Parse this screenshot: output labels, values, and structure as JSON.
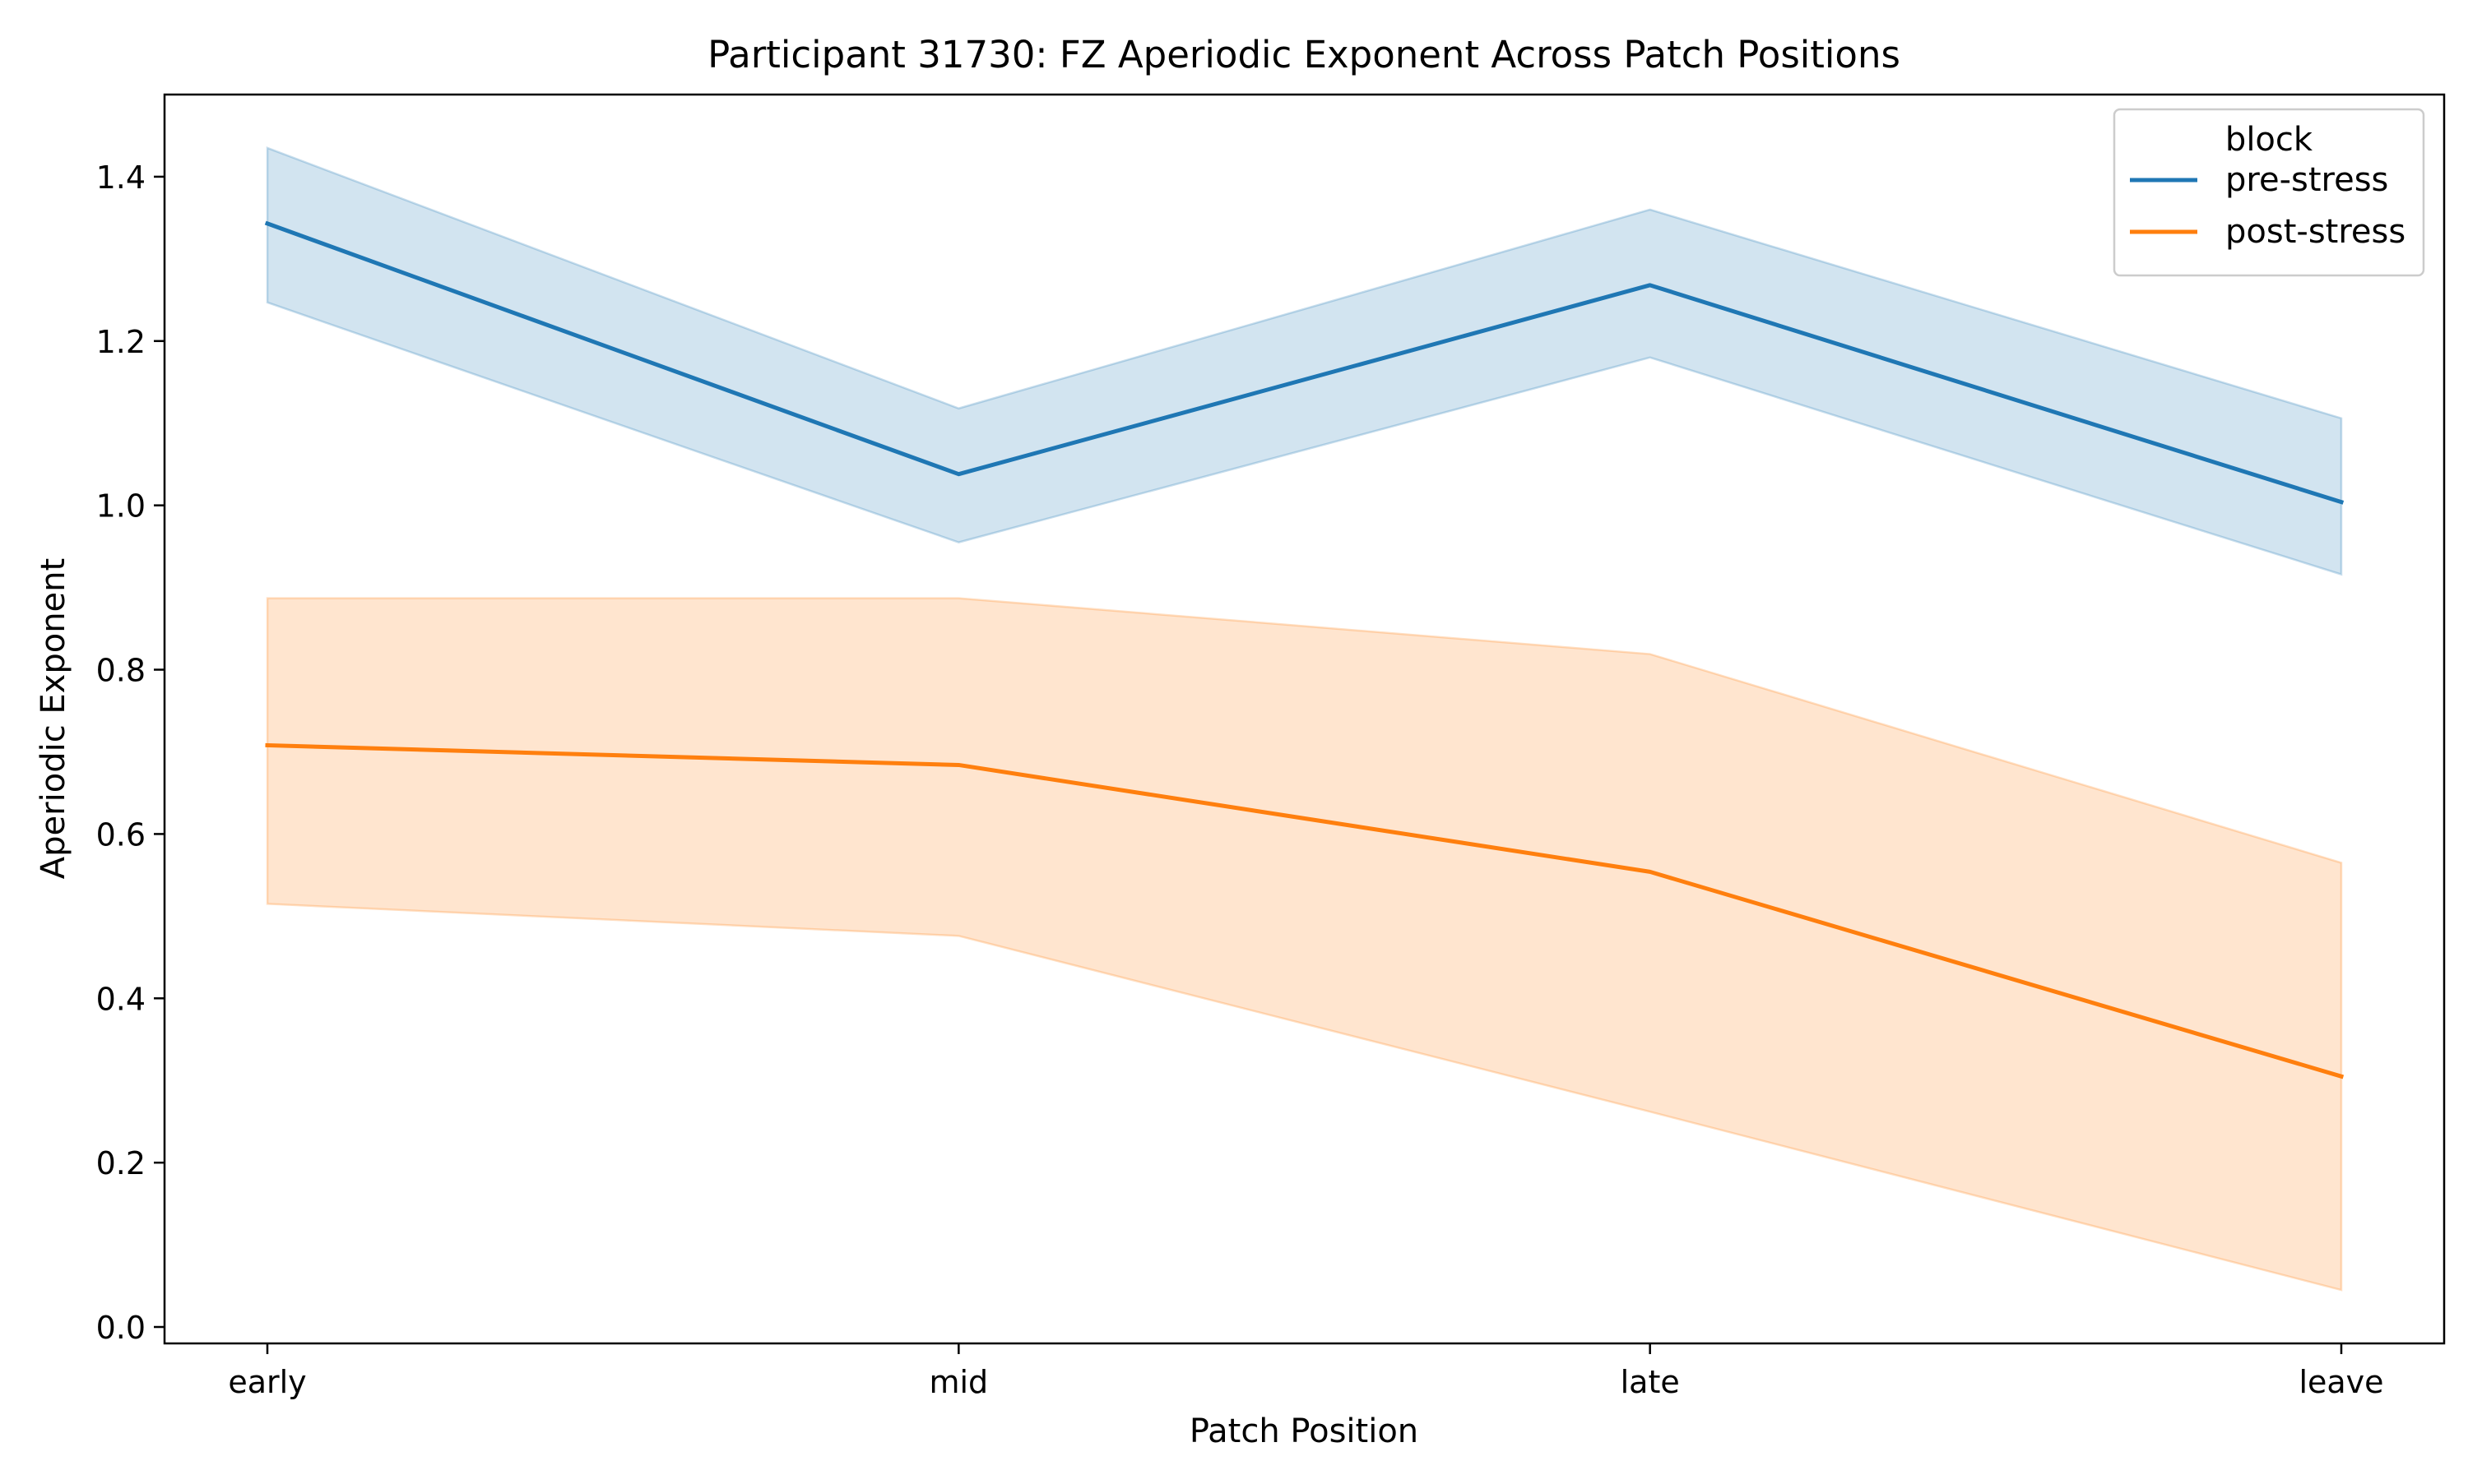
{
  "chart_data": {
    "type": "line",
    "title": "Participant 31730: FZ Aperiodic Exponent Across Patch Positions",
    "xlabel": "Patch Position",
    "ylabel": "Aperiodic Exponent",
    "categories": [
      "early",
      "mid",
      "late",
      "leave"
    ],
    "ylim": [
      -0.02,
      1.5
    ],
    "yticks": [
      0.0,
      0.2,
      0.4,
      0.6,
      0.8,
      1.0,
      1.2,
      1.4
    ],
    "ytick_labels": [
      "0.0",
      "0.2",
      "0.4",
      "0.6",
      "0.8",
      "1.0",
      "1.2",
      "1.4"
    ],
    "grid": false,
    "legend": {
      "title": "block",
      "placement": "top-right"
    },
    "series": [
      {
        "name": "pre-stress",
        "color": "#1f77b4",
        "values": [
          1.343,
          1.038,
          1.268,
          1.004
        ],
        "ci_lower": [
          1.247,
          0.955,
          1.18,
          0.916
        ],
        "ci_upper": [
          1.435,
          1.118,
          1.36,
          1.106
        ]
      },
      {
        "name": "post-stress",
        "color": "#ff7f0e",
        "values": [
          0.708,
          0.684,
          0.554,
          0.305
        ],
        "ci_lower": [
          0.515,
          0.476,
          0.262,
          0.045
        ],
        "ci_upper": [
          0.887,
          0.887,
          0.819,
          0.565
        ]
      }
    ]
  }
}
